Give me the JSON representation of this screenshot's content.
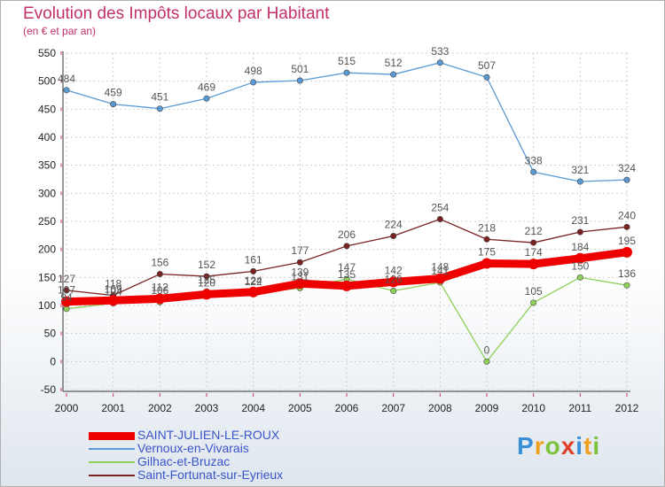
{
  "header": {
    "title": "Evolution des Impôts locaux par Habitant",
    "subtitle": "(en € et par an)"
  },
  "brand": {
    "letters": [
      "P",
      "r",
      "o",
      "x",
      "i",
      "t",
      "i"
    ],
    "colors": [
      "#3b8fd6",
      "#f0a020",
      "#7cc23c",
      "#e0402a",
      "#3b8fd6",
      "#f0a020",
      "#7cc23c"
    ]
  },
  "chart_data": {
    "type": "line",
    "title": "Evolution des Impôts locaux par Habitant",
    "subtitle": "(en € et par an)",
    "xlabel": "",
    "ylabel": "",
    "x": [
      "2000",
      "2001",
      "2002",
      "2003",
      "2004",
      "2005",
      "2006",
      "2007",
      "2008",
      "2009",
      "2010",
      "2011",
      "2012"
    ],
    "ylim": [
      -50,
      550
    ],
    "yticks": [
      -50,
      0,
      50,
      100,
      150,
      200,
      250,
      300,
      350,
      400,
      450,
      500,
      550
    ],
    "grid": true,
    "legend_position": "bottom-left",
    "series": [
      {
        "name": "SAINT-JULIEN-LE-ROUX",
        "color": "#ee0000",
        "values": [
          107,
          109,
          112,
          120,
          124,
          139,
          135,
          142,
          148,
          175,
          174,
          184,
          195
        ],
        "labels": [
          "107",
          "109",
          "112",
          "120",
          "124",
          "139",
          "135",
          "142",
          "148",
          "175",
          "174",
          "184",
          "195"
        ]
      },
      {
        "name": "Vernoux-en-Vivarais",
        "color": "#5a9ad4",
        "values": [
          484,
          459,
          451,
          469,
          498,
          501,
          515,
          512,
          533,
          507,
          338,
          321,
          324
        ],
        "labels": [
          "484",
          "459",
          "451",
          "469",
          "498",
          "501",
          "515",
          "512",
          "533",
          "507",
          "338",
          "321",
          "324"
        ]
      },
      {
        "name": "Gilhac-et-Bruzac",
        "color": "#8fd05a",
        "values": [
          94,
          104,
          106,
          125,
          122,
          131,
          147,
          126,
          141,
          0,
          105,
          150,
          136
        ],
        "labels": [
          "94",
          "104",
          "106",
          "125",
          "122",
          "131",
          "147",
          "126",
          "141",
          "0",
          "105",
          "150",
          "136"
        ]
      },
      {
        "name": "Saint-Fortunat-sur-Eyrieux",
        "color": "#7a2222",
        "values": [
          127,
          118,
          156,
          152,
          161,
          177,
          206,
          224,
          254,
          218,
          212,
          231,
          240
        ],
        "labels": [
          "127",
          "118",
          "156",
          "152",
          "161",
          "177",
          "206",
          "224",
          "254",
          "218",
          "212",
          "231",
          "240"
        ]
      }
    ]
  }
}
